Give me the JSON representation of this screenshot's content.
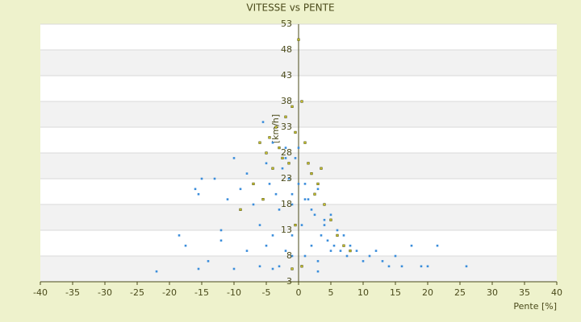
{
  "chart_data": {
    "type": "scatter",
    "title": "VITESSE vs PENTE",
    "xlabel": "Pente [%]",
    "ylabel": "[km/h]",
    "xlim": [
      -40,
      40
    ],
    "xticks": [
      -40,
      -35,
      -30,
      -25,
      -20,
      -15,
      -10,
      -5,
      0,
      5,
      10,
      15,
      20,
      25,
      30,
      35,
      40
    ],
    "ylim": [
      3,
      53
    ],
    "yticks": [
      3,
      8,
      13,
      18,
      23,
      28,
      33,
      38,
      43,
      48,
      53
    ],
    "grid": true,
    "series": [
      {
        "color": "#3a8ddb",
        "x": [
          -22,
          -18.5,
          -17.5,
          -15.5,
          -15,
          -14,
          -13,
          -12,
          -11,
          -10,
          -9,
          -8,
          -7,
          -6,
          -5.5,
          -5,
          -4.5,
          -4,
          -3.5,
          -3,
          -2.5,
          -2,
          -1.5,
          -1,
          -0.5,
          0,
          0.5,
          1,
          1.5,
          2,
          2.5,
          3,
          3.5,
          4,
          4.5,
          5,
          5.5,
          6,
          6.5,
          7,
          7.5,
          8,
          9,
          10,
          11,
          12,
          13,
          14,
          15,
          16,
          17.5,
          19,
          20,
          21.5,
          26,
          -16,
          -15.5,
          -12,
          -10,
          -8,
          -6,
          -4,
          -3,
          -2,
          -1,
          0,
          1,
          2,
          3,
          4,
          5,
          6,
          -5,
          -4,
          -2,
          -1,
          1,
          2,
          3,
          -1
        ],
        "values": [
          5,
          12,
          10,
          5.5,
          23,
          7,
          23,
          13,
          19,
          27,
          21,
          24,
          18,
          14,
          34,
          26,
          22,
          30,
          20,
          17,
          25,
          29,
          23,
          18,
          27,
          29,
          14,
          22,
          19,
          24,
          16,
          21,
          12,
          14,
          11,
          16,
          10,
          13,
          9,
          12,
          8,
          10,
          9,
          7,
          8,
          9,
          7,
          6,
          8,
          6,
          10,
          6,
          6,
          10,
          6,
          21,
          20,
          11,
          5.5,
          9,
          6,
          5.5,
          6,
          9,
          12,
          22,
          8,
          17,
          7,
          15,
          9,
          12,
          10,
          12,
          27,
          8,
          19,
          10,
          5,
          20
        ]
      },
      {
        "color": "#c9c22a",
        "x": [
          -6,
          -5,
          -4.5,
          -4,
          -3.5,
          -3,
          -2.5,
          -2,
          -1.5,
          -1,
          -0.5,
          0,
          0.5,
          1,
          1.5,
          2,
          2.5,
          3,
          4,
          5,
          6,
          7,
          8,
          -9,
          -7,
          -5.5,
          -1,
          0.5,
          -0.5,
          3.5
        ],
        "values": [
          30,
          28,
          31,
          25,
          33,
          29,
          27,
          35,
          26,
          37,
          32,
          50,
          38,
          30,
          26,
          24,
          20,
          22,
          18,
          15,
          12,
          10,
          9,
          17,
          22,
          19,
          5.5,
          6,
          14,
          25
        ]
      }
    ]
  }
}
